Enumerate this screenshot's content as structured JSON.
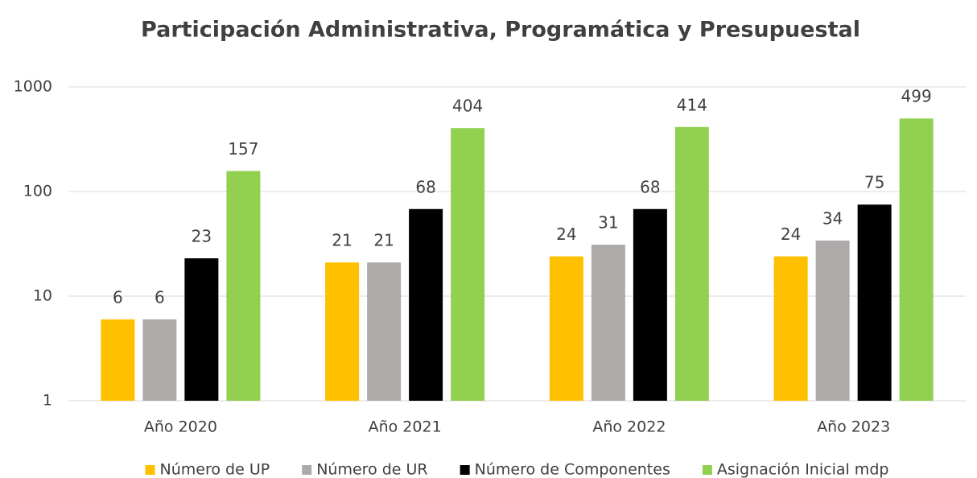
{
  "chart_data": {
    "type": "bar",
    "title": "Participación Administrativa, Programática y Presupuestal",
    "categories": [
      "Año 2020",
      "Año 2021",
      "Año 2022",
      "Año 2023"
    ],
    "series": [
      {
        "name": "Número de UP",
        "color": "#ffc000",
        "values": [
          6,
          21,
          24,
          24
        ]
      },
      {
        "name": "Número de UR",
        "color": "#aeaaaa",
        "values": [
          6,
          21,
          31,
          34
        ]
      },
      {
        "name": "Número de Componentes",
        "color": "#000000",
        "values": [
          23,
          68,
          68,
          75
        ]
      },
      {
        "name": "Asignación Inicial mdp",
        "color": "#92d050",
        "values": [
          157,
          404,
          414,
          499
        ]
      }
    ],
    "ylim": [
      1,
      1000
    ],
    "yticks": [
      1,
      10,
      100,
      1000
    ],
    "log_scale": true,
    "grid": true,
    "legend": "bottom"
  }
}
